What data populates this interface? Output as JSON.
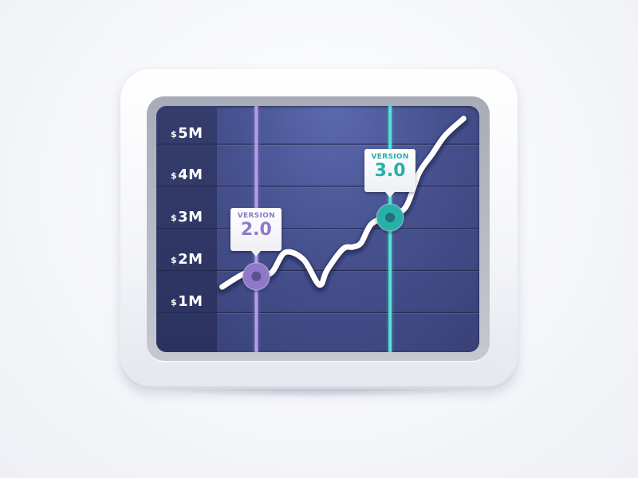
{
  "chart_data": {
    "type": "line",
    "y_tick_labels": [
      {
        "currency": "$",
        "value": "5M"
      },
      {
        "currency": "$",
        "value": "4M"
      },
      {
        "currency": "$",
        "value": "3M"
      },
      {
        "currency": "$",
        "value": "2M"
      },
      {
        "currency": "$",
        "value": "1M"
      }
    ],
    "ylim": [
      0.05,
      5.9
    ],
    "xlim": [
      0,
      10
    ],
    "grid": true,
    "series": [
      {
        "x": [
          0.2,
          1.1,
          1.6,
          2.1,
          2.6,
          3.3,
          3.9,
          4.2,
          4.8,
          5.2,
          5.5,
          5.9,
          6.6,
          7.2,
          7.7,
          8.2,
          8.7,
          9.4
        ],
        "y": [
          1.6,
          1.93,
          1.85,
          1.95,
          2.42,
          2.25,
          1.65,
          2.0,
          2.5,
          2.55,
          2.65,
          3.1,
          3.3,
          3.5,
          4.3,
          4.75,
          5.2,
          5.6
        ]
      }
    ],
    "markers": [
      {
        "x": 1.5,
        "y": 1.85,
        "label_top": "VERSION",
        "label_value": "2.0",
        "color": "#8f78c8",
        "line_color": "#b79df0"
      },
      {
        "x": 6.6,
        "y": 3.25,
        "label_top": "VERSION",
        "label_value": "3.0",
        "color": "#27b0a6",
        "line_color": "#4fe5d6"
      }
    ]
  }
}
